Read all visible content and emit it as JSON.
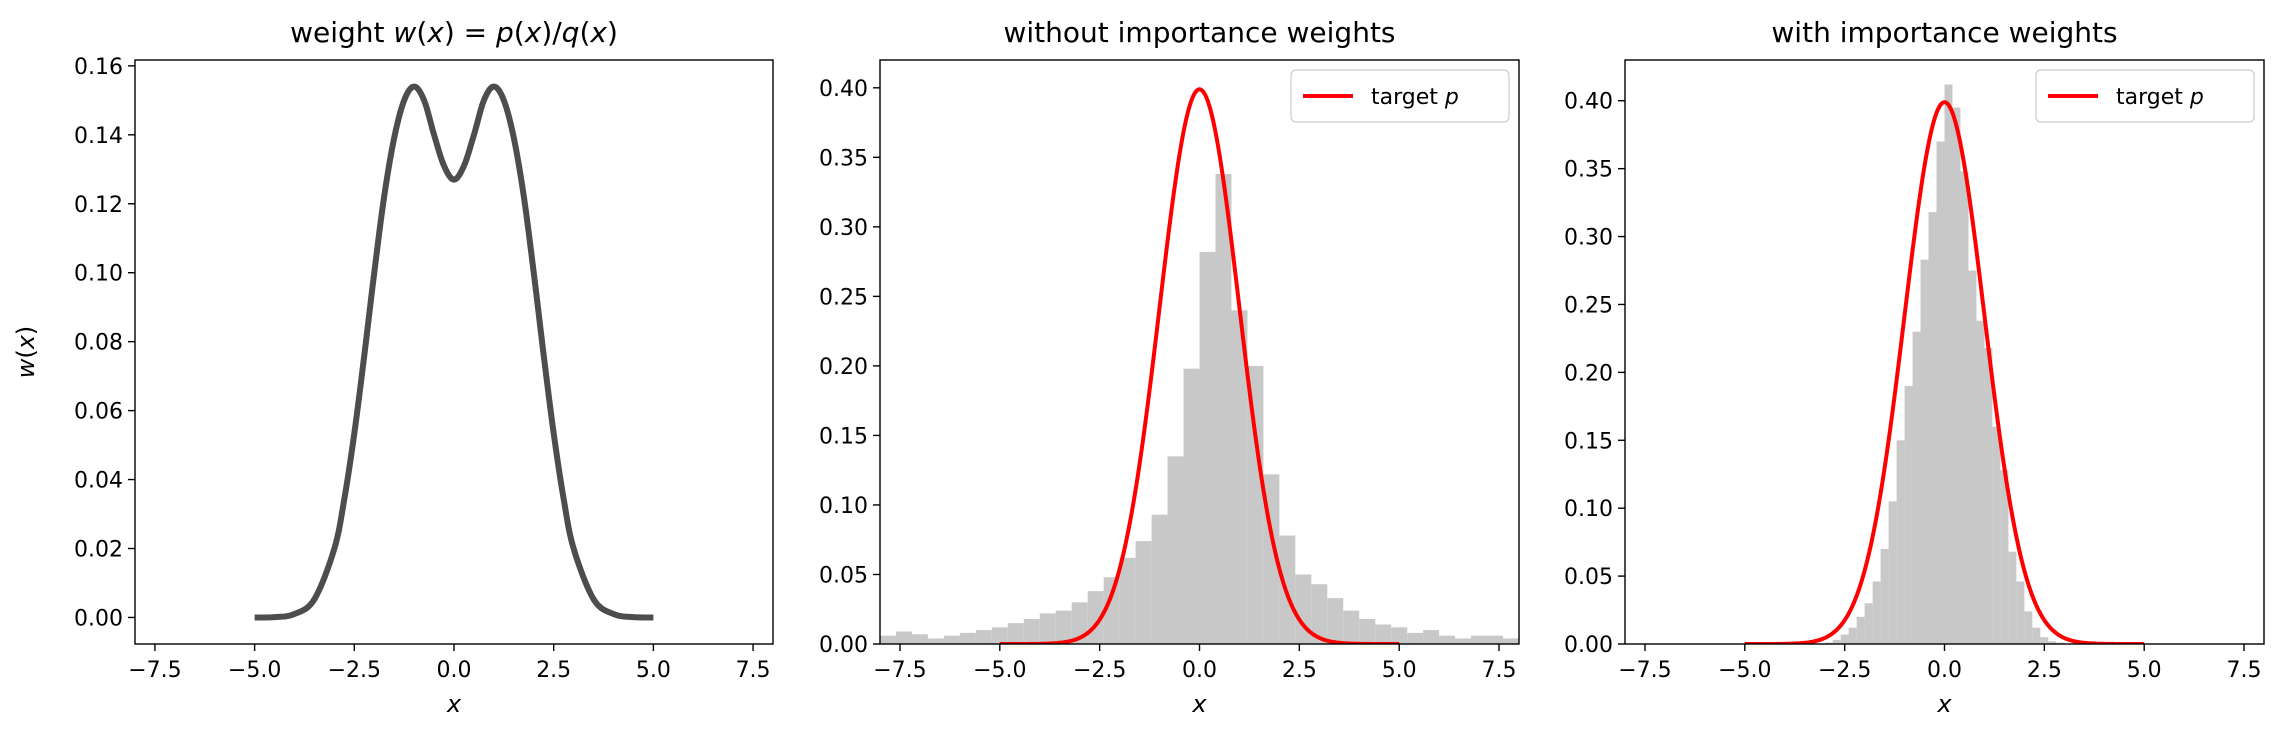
{
  "chart_data": [
    {
      "type": "line",
      "title": "weight w(x) = p(x)/q(x)",
      "xlabel": "x",
      "ylabel": "w(x)",
      "xlim": [
        -8,
        8
      ],
      "ylim": [
        -0.0077,
        0.1617
      ],
      "xticks": [
        "−7.5",
        "−5.0",
        "−2.5",
        "0.0",
        "2.5",
        "5.0",
        "7.5"
      ],
      "xtick_values": [
        -7.5,
        -5,
        -2.5,
        0,
        2.5,
        5,
        7.5
      ],
      "yticks": [
        "0.00",
        "0.02",
        "0.04",
        "0.06",
        "0.08",
        "0.10",
        "0.12",
        "0.14",
        "0.16"
      ],
      "ytick_values": [
        0,
        0.02,
        0.04,
        0.06,
        0.08,
        0.1,
        0.12,
        0.14,
        0.16
      ],
      "grid": false,
      "series": [
        {
          "color": "#4d4d4d",
          "x": [
            -5.0,
            -4.5,
            -4.0,
            -3.5,
            -3.0,
            -2.75,
            -2.5,
            -2.25,
            -2.0,
            -1.75,
            -1.5,
            -1.25,
            -1.0,
            -0.75,
            -0.5,
            -0.25,
            0.0,
            0.25,
            0.5,
            0.75,
            1.0,
            1.25,
            1.5,
            1.75,
            2.0,
            2.25,
            2.5,
            2.75,
            3.0,
            3.5,
            4.0,
            4.5,
            5.0
          ],
          "y": [
            0.0,
            0.0001,
            0.001,
            0.0053,
            0.02,
            0.0344,
            0.0534,
            0.076,
            0.1,
            0.1222,
            0.1391,
            0.15,
            0.154,
            0.15,
            0.14,
            0.131,
            0.127,
            0.131,
            0.14,
            0.15,
            0.154,
            0.15,
            0.1391,
            0.1222,
            0.1,
            0.076,
            0.0534,
            0.0344,
            0.02,
            0.0053,
            0.001,
            0.0001,
            0.0
          ]
        }
      ]
    },
    {
      "type": "bar",
      "title": "without importance weights",
      "xlabel": "x",
      "ylabel": "",
      "xlim": [
        -8,
        8
      ],
      "ylim": [
        0,
        0.42
      ],
      "xticks": [
        "−7.5",
        "−5.0",
        "−2.5",
        "0.0",
        "2.5",
        "5.0",
        "7.5"
      ],
      "xtick_values": [
        -7.5,
        -5,
        -2.5,
        0,
        2.5,
        5,
        7.5
      ],
      "yticks": [
        "0.00",
        "0.05",
        "0.10",
        "0.15",
        "0.20",
        "0.25",
        "0.30",
        "0.35",
        "0.40"
      ],
      "ytick_values": [
        0,
        0.05,
        0.1,
        0.15,
        0.2,
        0.25,
        0.3,
        0.35,
        0.4
      ],
      "grid": false,
      "legend": {
        "position": "top-right",
        "label_text": "target ",
        "label_var": "p"
      },
      "histogram": {
        "color": "#c8c8c8",
        "bin_width": 0.4,
        "bin_start": -8.0,
        "heights": [
          0.006,
          0.009,
          0.007,
          0.004,
          0.006,
          0.008,
          0.01,
          0.012,
          0.015,
          0.018,
          0.022,
          0.024,
          0.03,
          0.038,
          0.048,
          0.062,
          0.074,
          0.093,
          0.135,
          0.198,
          0.282,
          0.338,
          0.24,
          0.2,
          0.122,
          0.078,
          0.05,
          0.043,
          0.033,
          0.024,
          0.018,
          0.014,
          0.012,
          0.008,
          0.01,
          0.006,
          0.004,
          0.006,
          0.006,
          0.004
        ]
      },
      "series": [
        {
          "color": "#ff0000",
          "curve": "normal_pdf",
          "mean": 0,
          "sd": 1,
          "x_range": [
            -5,
            5
          ]
        }
      ]
    },
    {
      "type": "bar",
      "title": "with importance weights",
      "xlabel": "x",
      "ylabel": "",
      "xlim": [
        -8,
        8
      ],
      "ylim": [
        0,
        0.43
      ],
      "xticks": [
        "−7.5",
        "−5.0",
        "−2.5",
        "0.0",
        "2.5",
        "5.0",
        "7.5"
      ],
      "xtick_values": [
        -7.5,
        -5,
        -2.5,
        0,
        2.5,
        5,
        7.5
      ],
      "yticks": [
        "0.00",
        "0.05",
        "0.10",
        "0.15",
        "0.20",
        "0.25",
        "0.30",
        "0.35",
        "0.40"
      ],
      "ytick_values": [
        0,
        0.05,
        0.1,
        0.15,
        0.2,
        0.25,
        0.3,
        0.35,
        0.4
      ],
      "grid": false,
      "legend": {
        "position": "top-right",
        "label_text": "target ",
        "label_var": "p"
      },
      "histogram": {
        "color": "#c8c8c8",
        "bin_width": 0.2,
        "bin_start": -3.0,
        "heights": [
          0.001,
          0.003,
          0.007,
          0.012,
          0.02,
          0.03,
          0.046,
          0.07,
          0.105,
          0.15,
          0.19,
          0.23,
          0.283,
          0.318,
          0.37,
          0.412,
          0.395,
          0.348,
          0.275,
          0.238,
          0.218,
          0.16,
          0.128,
          0.068,
          0.046,
          0.024,
          0.012,
          0.005,
          0.002,
          0.001
        ]
      },
      "series": [
        {
          "color": "#ff0000",
          "curve": "normal_pdf",
          "mean": 0,
          "sd": 1,
          "x_range": [
            -5,
            5
          ]
        }
      ]
    }
  ]
}
